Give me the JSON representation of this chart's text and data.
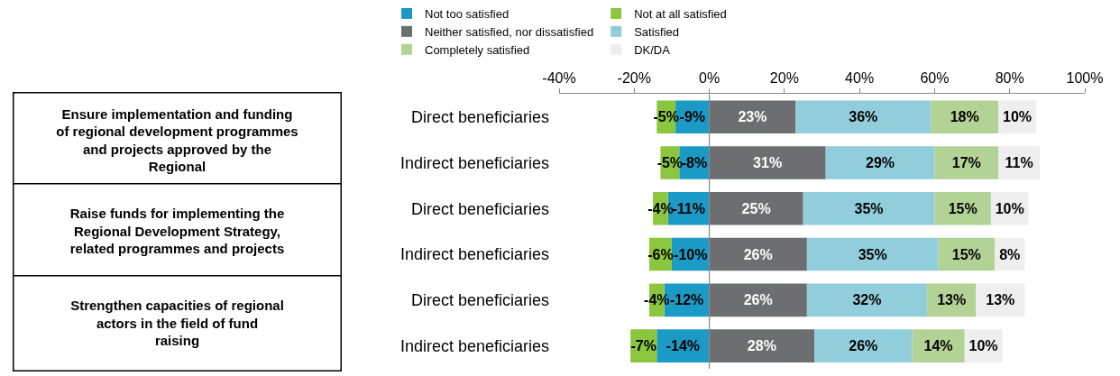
{
  "chart_data": {
    "type": "bar",
    "orientation": "horizontal",
    "stacked": true,
    "categories": [
      "Direct beneficiaries",
      "Indirect beneficiaries",
      "Direct beneficiaries",
      "Indirect beneficiaries",
      "Direct beneficiaries",
      "Indirect beneficiaries"
    ],
    "series": [
      {
        "name": "Not too satisfied",
        "color": "#1b9ac6",
        "values": [
          -9,
          -8,
          -11,
          -10,
          -12,
          -14
        ],
        "value_labels": [
          "-9%",
          "-8%",
          "-11%",
          "-10%",
          "-12%",
          "-14%"
        ]
      },
      {
        "name": "Not at all satisfied",
        "color": "#8cc63e",
        "values": [
          -5,
          -5,
          -4,
          -6,
          -4,
          -7
        ],
        "value_labels": [
          "-5%",
          "-5%",
          "-4%",
          "-6%",
          "-4%",
          "-7%"
        ]
      },
      {
        "name": "Neither satisfied, nor dissatisfied",
        "color": "#6d6e70",
        "values": [
          23,
          31,
          25,
          26,
          26,
          28
        ],
        "value_labels": [
          "23%",
          "31%",
          "25%",
          "26%",
          "26%",
          "28%"
        ]
      },
      {
        "name": "Satisfied",
        "color": "#92cddc",
        "values": [
          36,
          29,
          35,
          35,
          32,
          26
        ],
        "value_labels": [
          "36%",
          "29%",
          "35%",
          "35%",
          "32%",
          "26%"
        ]
      },
      {
        "name": "Completely satisfied",
        "color": "#b3d396",
        "values": [
          18,
          17,
          15,
          15,
          13,
          14
        ],
        "value_labels": [
          "18%",
          "17%",
          "15%",
          "15%",
          "13%",
          "14%"
        ]
      },
      {
        "name": "DK/DA",
        "color": "#eeeeee",
        "values": [
          10,
          11,
          10,
          8,
          13,
          10
        ],
        "value_labels": [
          "10%",
          "11%",
          "10%",
          "8%",
          "13%",
          "10%"
        ]
      }
    ],
    "xlim": [
      -40,
      100
    ],
    "xticks": [
      {
        "value": -40,
        "label": "-40%"
      },
      {
        "value": -20,
        "label": "-20%"
      },
      {
        "value": 0,
        "label": "0%"
      },
      {
        "value": 20,
        "label": "20%"
      },
      {
        "value": 40,
        "label": "40%"
      },
      {
        "value": 60,
        "label": "60%"
      },
      {
        "value": 80,
        "label": "80%"
      },
      {
        "value": 100,
        "label": "100%"
      }
    ],
    "legend": "top",
    "ref_lines": [
      {
        "axis": "x",
        "value": 0,
        "color": "#888888"
      }
    ],
    "annotations": [
      "Ensure implementation and funding of regional development programmes and projects approved by the Regional",
      "Raise funds for implementing the Regional Development Strategy, related programmes and projects",
      "Strengthen capacities of regional actors in the field of fund raising"
    ]
  }
}
